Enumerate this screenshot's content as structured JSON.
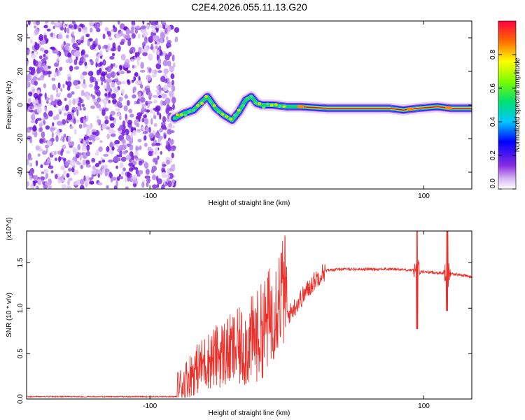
{
  "figure": {
    "title": "C2E4.2026.055.11.13.G20"
  },
  "chart_data": [
    {
      "type": "heatmap",
      "panel": "spectrogram",
      "xlabel": "Height of straight line (km)",
      "ylabel": "Frequency (Hz)",
      "xlim": [
        -190,
        135
      ],
      "ylim": [
        -50,
        50
      ],
      "xticks": [
        -100,
        100
      ],
      "xtick_labels": [
        "-100",
        "100"
      ],
      "yticks": [
        40,
        20,
        0,
        -20,
        -40
      ],
      "ytick_labels": [
        "40",
        "20",
        "0",
        "-20",
        "-40"
      ],
      "noise_region_x": [
        -190,
        -82
      ],
      "ridge": {
        "x": [
          -82,
          -75,
          -68,
          -62,
          -58,
          -52,
          -46,
          -40,
          -35,
          -30,
          -26,
          -22,
          -18,
          -10,
          0,
          10,
          30,
          60,
          75,
          85,
          95,
          110,
          120,
          135
        ],
        "y": [
          -8,
          -5,
          -3,
          2,
          5,
          -2,
          -6,
          -9,
          -4,
          3,
          5,
          1,
          0,
          0,
          -1,
          -1,
          -2,
          -2,
          -2,
          -3,
          -2,
          -1,
          -2,
          -2
        ]
      },
      "colorbar": {
        "label": "Normalized spectral amplitude",
        "range": [
          0,
          1
        ],
        "ticks": [
          0.0,
          0.2,
          0.4,
          0.6,
          0.8
        ],
        "tick_labels": [
          "0.0",
          "0.2",
          "0.4",
          "0.6",
          "0.8"
        ]
      }
    },
    {
      "type": "line",
      "panel": "snr",
      "xlabel": "Height of straight line (km)",
      "ylabel": "SNR (10 * v/v)",
      "scale_label": "(x10^4)",
      "color": "#e8322b",
      "xlim": [
        -190,
        135
      ],
      "ylim": [
        0,
        1.85
      ],
      "xticks": [
        -100,
        100
      ],
      "xtick_labels": [
        "-100",
        "100"
      ],
      "yticks": [
        0.0,
        0.5,
        1.0,
        1.5
      ],
      "ytick_labels": [
        "0.0",
        "0.5",
        "1.0",
        "1.5"
      ],
      "series": [
        {
          "name": "SNR",
          "envelope_x": [
            -190,
            -80,
            -76,
            -70,
            -60,
            -50,
            -40,
            -30,
            -20,
            -15,
            -10,
            -5,
            0,
            5,
            10,
            15,
            20,
            25,
            30,
            40,
            60,
            80,
            90,
            100,
            110,
            120,
            130,
            135
          ],
          "envelope_y": [
            0.02,
            0.02,
            0.05,
            0.15,
            0.25,
            0.3,
            0.32,
            0.35,
            0.45,
            0.55,
            0.7,
            0.85,
            0.9,
            1.0,
            1.1,
            1.2,
            1.3,
            1.38,
            1.42,
            1.43,
            1.43,
            1.43,
            1.42,
            1.4,
            1.39,
            1.38,
            1.36,
            1.34
          ],
          "spikes": [
            {
              "x": 95,
              "hi": 1.85,
              "lo": 0.77
            },
            {
              "x": 117,
              "hi": 1.85,
              "lo": 0.97
            }
          ]
        }
      ]
    }
  ]
}
